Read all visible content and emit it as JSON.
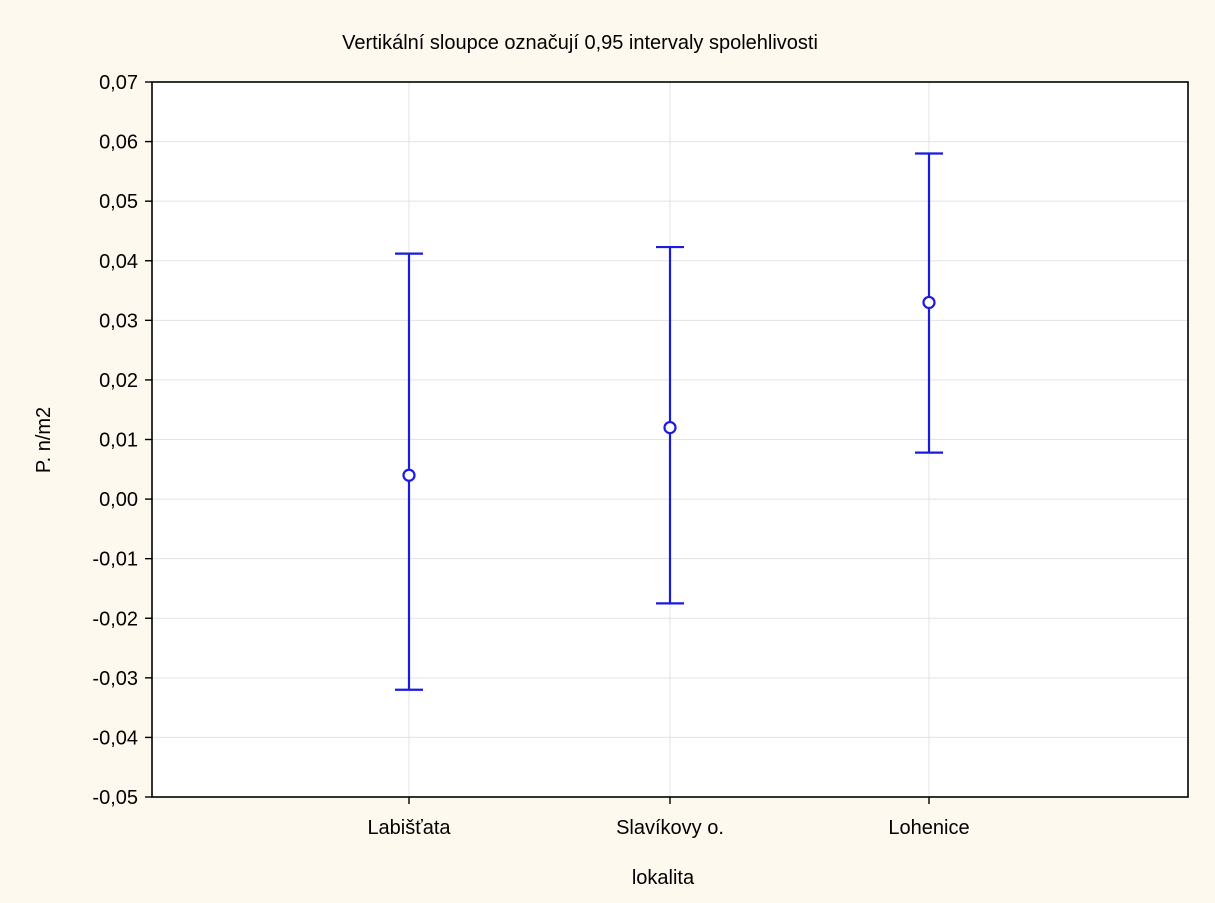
{
  "chart_data": {
    "type": "errorbar",
    "title": "Vertikální sloupce označují 0,95 intervaly spolehlivosti",
    "xlabel": "lokalita",
    "ylabel": "P. n/m2",
    "categories": [
      "Labišťata",
      "Slavíkovy o.",
      "Lohenice"
    ],
    "means": [
      0.004,
      0.012,
      0.033
    ],
    "lower": [
      -0.032,
      -0.0175,
      0.0078
    ],
    "upper": [
      0.0412,
      0.0423,
      0.058
    ],
    "ylim": [
      -0.05,
      0.07
    ],
    "yticks": [
      0.07,
      0.06,
      0.05,
      0.04,
      0.03,
      0.02,
      0.01,
      0.0,
      -0.01,
      -0.02,
      -0.03,
      -0.04,
      -0.05
    ],
    "ytick_labels": [
      "0,07",
      "0,06",
      "0,05",
      "0,04",
      "0,03",
      "0,02",
      "0,01",
      "0,00",
      "-0,01",
      "-0,02",
      "-0,03",
      "-0,04",
      "-0,05"
    ],
    "grid": true,
    "series_color": "#1a1ae0",
    "background_color": "#fdf9ee",
    "plot_background_color": "#ffffff"
  }
}
